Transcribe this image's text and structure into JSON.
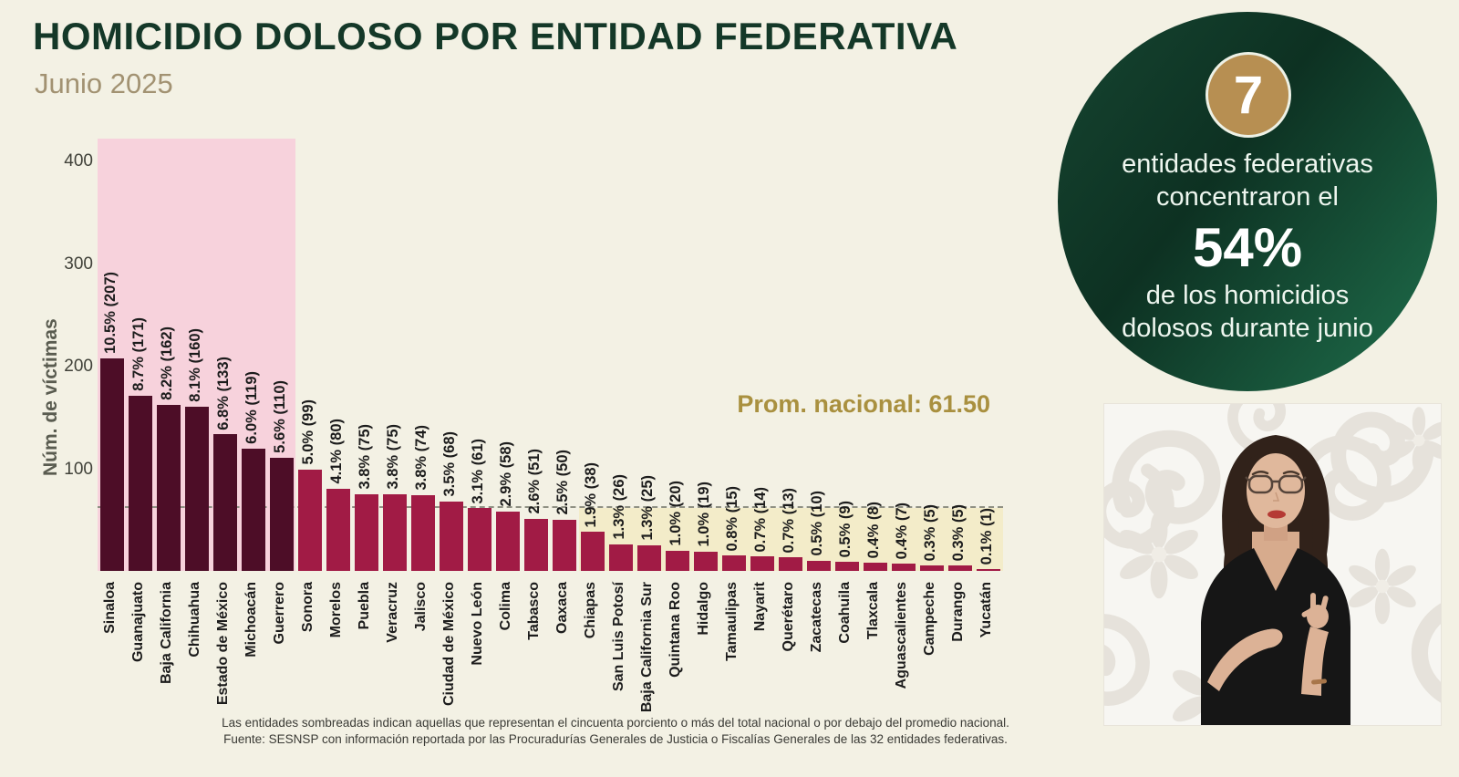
{
  "header": {
    "title": "HOMICIDIO DOLOSO POR ENTIDAD FEDERATIVA",
    "subtitle": "Junio 2025"
  },
  "chart_data": {
    "type": "bar",
    "title": "HOMICIDIO DOLOSO POR ENTIDAD FEDERATIVA",
    "subtitle": "Junio 2025",
    "ylabel": "Núm. de víctimas",
    "yticks": [
      100,
      200,
      300,
      400
    ],
    "ylim": [
      0,
      421
    ],
    "grid": false,
    "bar_label_format": "{pct} ({value})",
    "average_line": {
      "value": 61.5,
      "label": "Prom. nacional: 61.50",
      "style": "dashed"
    },
    "highlight_top_count": 7,
    "yellow_band_start_index": 17,
    "categories": [
      "Sinaloa",
      "Guanajuato",
      "Baja California",
      "Chihuahua",
      "Estado de México",
      "Michoacán",
      "Guerrero",
      "Sonora",
      "Morelos",
      "Puebla",
      "Veracruz",
      "Jalisco",
      "Ciudad de México",
      "Nuevo León",
      "Colima",
      "Tabasco",
      "Oaxaca",
      "Chiapas",
      "San Luis Potosí",
      "Baja California Sur",
      "Quintana Roo",
      "Hidalgo",
      "Tamaulipas",
      "Nayarit",
      "Querétaro",
      "Zacatecas",
      "Coahuila",
      "Tlaxcala",
      "Aguascalientes",
      "Campeche",
      "Durango",
      "Yucatán"
    ],
    "values": [
      207,
      171,
      162,
      160,
      133,
      119,
      110,
      99,
      80,
      75,
      75,
      74,
      68,
      61,
      58,
      51,
      50,
      38,
      26,
      25,
      20,
      19,
      15,
      14,
      13,
      10,
      9,
      8,
      7,
      5,
      5,
      1
    ],
    "percent_labels": [
      "10.5%",
      "8.7%",
      "8.2%",
      "8.1%",
      "6.8%",
      "6.0%",
      "5.6%",
      "5.0%",
      "4.1%",
      "3.8%",
      "3.8%",
      "3.8%",
      "3.5%",
      "3.1%",
      "2.9%",
      "2.6%",
      "2.5%",
      "1.9%",
      "1.3%",
      "1.3%",
      "1.0%",
      "1.0%",
      "0.8%",
      "0.7%",
      "0.7%",
      "0.5%",
      "0.5%",
      "0.4%",
      "0.4%",
      "0.3%",
      "0.3%",
      "0.1%"
    ]
  },
  "badge": {
    "number": "7",
    "line1": "entidades federativas",
    "line2": "concentraron el",
    "percent": "54%",
    "line3": "de los homicidios",
    "line4": "dolosos durante junio"
  },
  "footnote": {
    "line1": "Las entidades sombreadas indican aquellas que representan el cincuenta porciento o más del total nacional o por debajo del promedio nacional.",
    "line2": "Fuente: SESNSP con información reportada por las Procuradurías Generales de Justicia o Fiscalías Generales de las 32 entidades federativas."
  },
  "colors": {
    "background": "#f3f1e4",
    "title_green": "#143828",
    "subtitle_gold": "#a29272",
    "bar_top7": "#4d0d27",
    "bar_rest": "#a11b45",
    "pink_region": "#f7d2dc",
    "yellow_band": "#f3ecc9",
    "avg_line": "#8f9083",
    "avg_gold": "#a9903f",
    "axis_text": "#3f4038",
    "ylabel_text": "#5a5c50",
    "footnote_text": "#3a3a35",
    "badge_green_dark": "#0d3122",
    "badge_green_mid": "#164531",
    "badge_green_light": "#1f6f4c",
    "badge_gold": "#b78f52"
  }
}
